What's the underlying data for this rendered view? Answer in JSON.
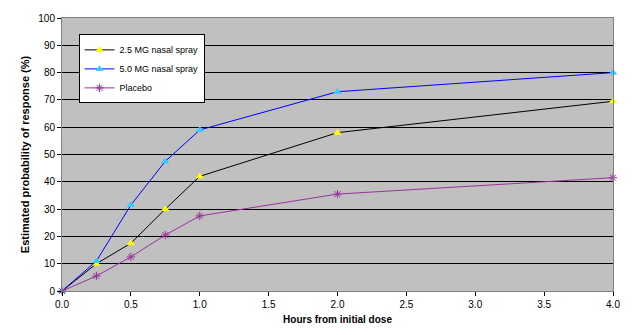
{
  "chart_data": {
    "type": "line",
    "x_label": "Hours from initial dose",
    "y_label": "Estimated probability of response (%)",
    "x": [
      0,
      0.25,
      0.5,
      0.75,
      1.0,
      2.0,
      4.0
    ],
    "series": [
      {
        "name": "2.5 MG nasal spray",
        "color": "#000000",
        "marker": "triangle-up",
        "values": [
          0,
          10,
          17.5,
          30,
          42,
          58,
          69.5
        ]
      },
      {
        "name": "5.0 MG nasal spray",
        "color": "#0000ff",
        "marker": "triangle-up",
        "values": [
          0,
          11,
          31.5,
          47.5,
          59,
          73,
          80
        ]
      },
      {
        "name": "Placebo",
        "color": "#993399",
        "marker": "asterisk",
        "values": [
          0,
          5.5,
          12.5,
          20.5,
          27.5,
          35.5,
          41.5
        ]
      }
    ],
    "xlim": [
      0,
      4
    ],
    "xticks": [
      {
        "value": 0,
        "label": "0.0"
      },
      0.5,
      {
        "value": 1,
        "label": "1.0"
      },
      1.5,
      {
        "value": 2,
        "label": "2.0"
      },
      2.5,
      {
        "value": 3,
        "label": "3.0"
      },
      3.5,
      {
        "value": 4,
        "label": "4.0"
      }
    ],
    "ylim": [
      0,
      100
    ],
    "yticks": [
      0,
      10,
      20,
      30,
      40,
      50,
      60,
      70,
      80,
      90,
      100
    ],
    "grid": true,
    "legend": "top-left"
  }
}
